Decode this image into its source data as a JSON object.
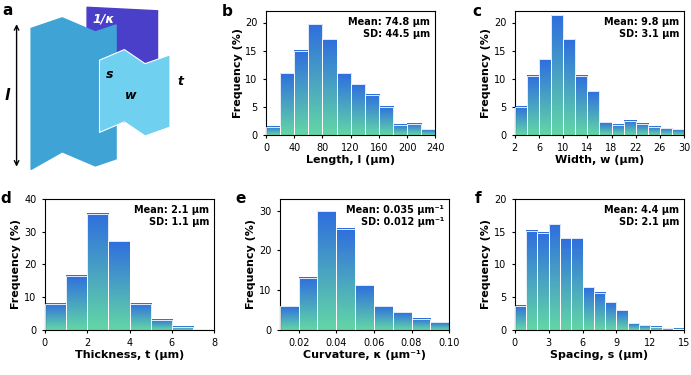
{
  "diagram": {
    "panel_label": "a",
    "labels": {
      "length": "l",
      "radius": "1/κ",
      "spacing": "s",
      "thickness": "t",
      "width": "w"
    }
  },
  "chart_data": [
    {
      "type": "histogram",
      "panel_label": "b",
      "xlabel": "Length, l (μm)",
      "ylabel": "Frequency (%)",
      "annotations": [
        "Mean: 74.8 μm",
        "SD: 44.5 μm"
      ],
      "bins": [
        0,
        20,
        40,
        60,
        80,
        100,
        120,
        140,
        160,
        180,
        200,
        220,
        240
      ],
      "values": [
        1.5,
        11,
        15,
        19.7,
        17,
        11,
        9,
        7.2,
        5,
        1.8,
        2,
        1
      ],
      "color": "#2f6fde",
      "xlim": [
        0,
        240
      ],
      "xticks": [
        0,
        40,
        80,
        120,
        160,
        200,
        240
      ],
      "ylim": [
        0,
        22
      ],
      "yticks": [
        0,
        5,
        10,
        15,
        20
      ]
    },
    {
      "type": "histogram",
      "panel_label": "c",
      "xlabel": "Width, w (μm)",
      "ylabel": "Frequency (%)",
      "annotations": [
        "Mean: 9.8 μm",
        "SD: 3.1 μm"
      ],
      "bins": [
        2,
        4,
        6,
        8,
        10,
        12,
        14,
        16,
        18,
        20,
        22,
        24,
        26,
        28,
        30
      ],
      "values": [
        5,
        10.5,
        13.5,
        21.3,
        17,
        10.5,
        7.8,
        2.3,
        1.8,
        2.5,
        2,
        1.5,
        1.2,
        1
      ],
      "color": "#2f6fde",
      "xlim": [
        2,
        30
      ],
      "xticks": [
        2,
        6,
        10,
        14,
        18,
        22,
        26,
        30
      ],
      "ylim": [
        0,
        22
      ],
      "yticks": [
        0,
        5,
        10,
        15,
        20
      ]
    },
    {
      "type": "histogram",
      "panel_label": "d",
      "xlabel": "Thickness, t (μm)",
      "ylabel": "Frequency (%)",
      "annotations": [
        "Mean: 2.1 μm",
        "SD: 1.1 μm"
      ],
      "bins": [
        0,
        1,
        2,
        3,
        4,
        5,
        6,
        7,
        8
      ],
      "values": [
        8,
        16.5,
        35.5,
        27,
        8,
        3.2,
        1,
        0.3
      ],
      "color": "#2f6fde",
      "xlim": [
        0,
        8
      ],
      "xticks": [
        0,
        2,
        4,
        6,
        8
      ],
      "ylim": [
        0,
        40
      ],
      "yticks": [
        0,
        10,
        20,
        30,
        40
      ]
    },
    {
      "type": "histogram",
      "panel_label": "e",
      "xlabel": "Curvature, κ (μm⁻¹)",
      "ylabel": "Frequency (%)",
      "annotations": [
        "Mean: 0.035 μm⁻¹",
        "SD: 0.012 μm⁻¹"
      ],
      "bins": [
        0.01,
        0.02,
        0.03,
        0.04,
        0.05,
        0.06,
        0.07,
        0.08,
        0.09,
        0.1
      ],
      "values": [
        6,
        13.2,
        29.8,
        25.5,
        11.2,
        6,
        4.5,
        2.8,
        2
      ],
      "color": "#2f6fde",
      "xlim": [
        0.01,
        0.1
      ],
      "xticks": [
        {
          "value": 0.02,
          "label": "0.02"
        },
        {
          "value": 0.04,
          "label": "0.04"
        },
        {
          "value": 0.06,
          "label": "0.06"
        },
        {
          "value": 0.08,
          "label": "0.08"
        },
        {
          "value": 0.1,
          "label": "0.10"
        }
      ],
      "ylim": [
        0,
        33
      ],
      "yticks": [
        0,
        10,
        20,
        30
      ]
    },
    {
      "type": "histogram",
      "panel_label": "f",
      "xlabel": "Spacing, s (μm)",
      "ylabel": "Frequency (%)",
      "annotations": [
        "Mean: 4.4 μm",
        "SD: 2.1 μm"
      ],
      "bins": [
        0,
        1,
        2,
        3,
        4,
        5,
        6,
        7,
        8,
        9,
        10,
        11,
        12,
        13,
        14,
        15
      ],
      "values": [
        3.7,
        15.1,
        14.8,
        16.1,
        14,
        14,
        6.5,
        5.7,
        4.2,
        3,
        1,
        0.7,
        0.5,
        0.3,
        0.2
      ],
      "color": "#2f6fde",
      "xlim": [
        0,
        15
      ],
      "xticks": [
        0,
        3,
        6,
        9,
        12,
        15
      ],
      "ylim": [
        0,
        20
      ],
      "yticks": [
        0,
        5,
        10,
        15,
        20
      ]
    }
  ]
}
